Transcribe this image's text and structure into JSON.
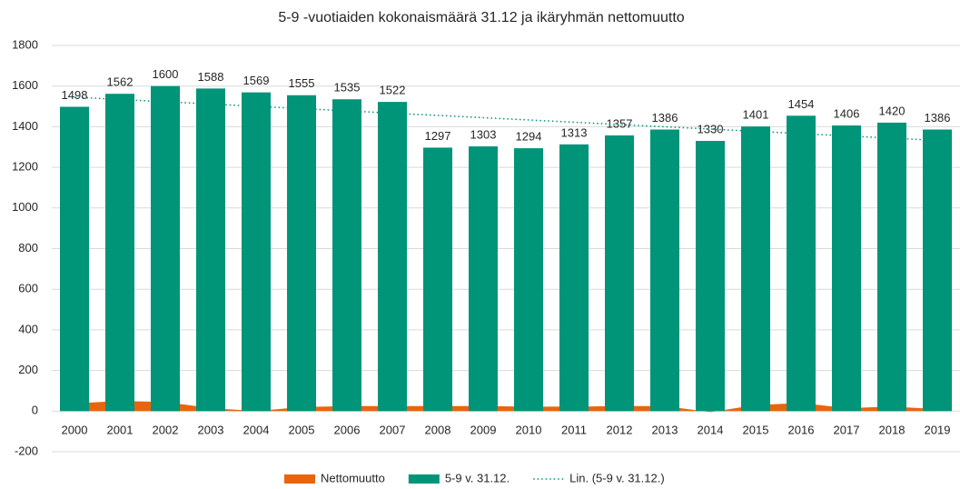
{
  "chart_data": {
    "type": "bar",
    "title": "5-9 -vuotiaiden kokonaismäärä 31.12 ja ikäryhmän nettomuutto",
    "categories": [
      "2000",
      "2001",
      "2002",
      "2003",
      "2004",
      "2005",
      "2006",
      "2007",
      "2008",
      "2009",
      "2010",
      "2011",
      "2012",
      "2013",
      "2014",
      "2015",
      "2016",
      "2017",
      "2018",
      "2019"
    ],
    "series": [
      {
        "name": "Nettomuutto",
        "type": "area",
        "color": "#e8650f",
        "values": [
          38,
          50,
          45,
          15,
          0,
          20,
          25,
          25,
          25,
          25,
          22,
          22,
          25,
          25,
          -5,
          30,
          40,
          15,
          22,
          10
        ]
      },
      {
        "name": "5-9 v. 31.12.",
        "type": "bar",
        "color": "#009479",
        "values": [
          1498,
          1562,
          1600,
          1588,
          1569,
          1555,
          1535,
          1522,
          1297,
          1303,
          1294,
          1313,
          1357,
          1386,
          1330,
          1401,
          1454,
          1406,
          1420,
          1386
        ]
      }
    ],
    "trendline": {
      "name": "Lin. (5-9 v. 31.12.)",
      "type": "linear",
      "color": "#009479"
    },
    "ylim": [
      -200,
      1800
    ],
    "yticks": [
      -200,
      0,
      200,
      400,
      600,
      800,
      1000,
      1200,
      1400,
      1600,
      1800
    ],
    "grid": true,
    "legend": "bottom"
  }
}
